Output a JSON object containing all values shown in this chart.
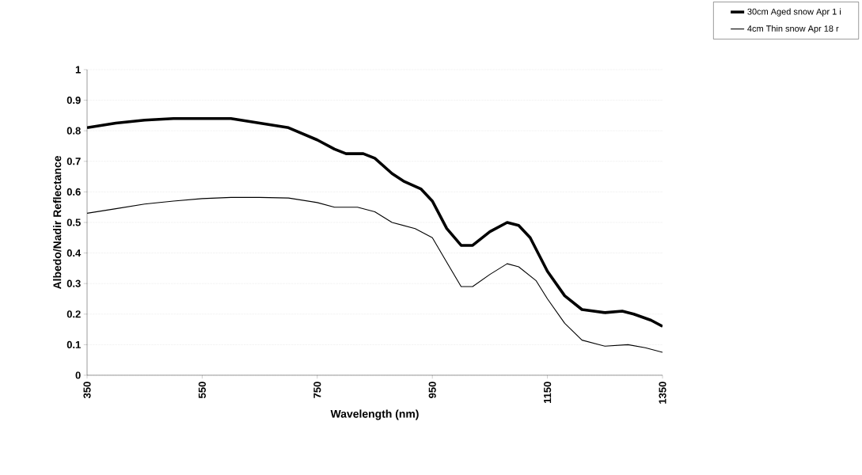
{
  "chart_data": {
    "type": "line",
    "xlabel": "Wavelength (nm)",
    "ylabel": "Albedo/Nadir Reflectance",
    "xlim": [
      350,
      1350
    ],
    "ylim": [
      0,
      1
    ],
    "xticks": [
      350,
      550,
      750,
      950,
      1150,
      1350
    ],
    "yticks": [
      0,
      0.1,
      0.2,
      0.3,
      0.4,
      0.5,
      0.6,
      0.7,
      0.8,
      0.9,
      1
    ],
    "grid": "y",
    "legend": "top right",
    "marker": "none",
    "line_style": "solid",
    "series": [
      {
        "name": "30cm  Aged snow  Apr 1 i",
        "color": "#000000",
        "x": [
          350,
          400,
          450,
          500,
          550,
          600,
          650,
          700,
          750,
          780,
          800,
          830,
          850,
          880,
          900,
          930,
          950,
          975,
          1000,
          1020,
          1050,
          1080,
          1100,
          1120,
          1150,
          1180,
          1210,
          1250,
          1280,
          1300,
          1330,
          1350
        ],
        "values": [
          0.81,
          0.825,
          0.835,
          0.84,
          0.84,
          0.84,
          0.825,
          0.81,
          0.77,
          0.74,
          0.725,
          0.725,
          0.71,
          0.66,
          0.635,
          0.61,
          0.57,
          0.48,
          0.425,
          0.425,
          0.47,
          0.5,
          0.49,
          0.45,
          0.34,
          0.26,
          0.215,
          0.205,
          0.21,
          0.2,
          0.18,
          0.16
        ]
      },
      {
        "name": "4cm  Thin snow  Apr 18 r",
        "color": "#000000",
        "x": [
          350,
          400,
          450,
          500,
          550,
          600,
          650,
          700,
          750,
          780,
          820,
          850,
          880,
          920,
          950,
          975,
          1000,
          1020,
          1050,
          1080,
          1100,
          1130,
          1150,
          1180,
          1210,
          1250,
          1290,
          1320,
          1350
        ],
        "values": [
          0.53,
          0.545,
          0.56,
          0.57,
          0.578,
          0.582,
          0.582,
          0.58,
          0.565,
          0.55,
          0.55,
          0.535,
          0.5,
          0.48,
          0.45,
          0.37,
          0.29,
          0.29,
          0.33,
          0.365,
          0.355,
          0.31,
          0.25,
          0.17,
          0.115,
          0.095,
          0.1,
          0.09,
          0.075
        ]
      }
    ]
  }
}
